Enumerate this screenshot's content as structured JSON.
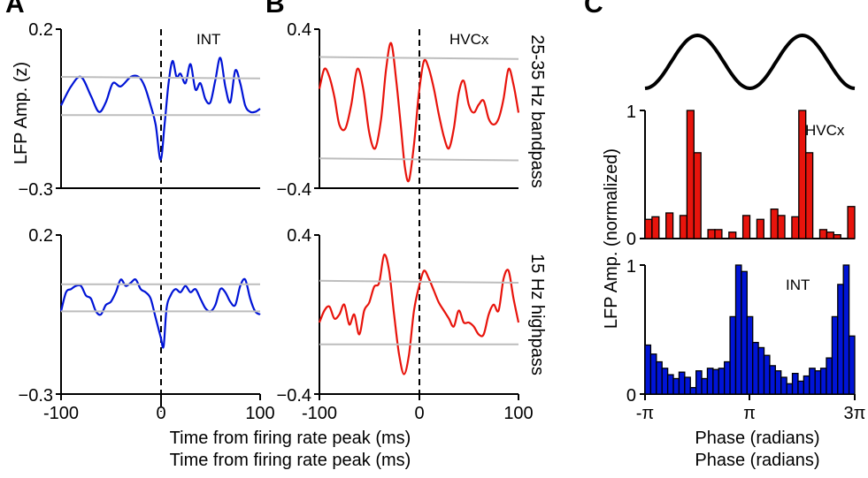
{
  "panel_letters": [
    "A",
    "B",
    "C"
  ],
  "colors": {
    "blue": "#0014d6",
    "red": "#e8140c",
    "gray": "#bdbdbd",
    "black": "#000000"
  },
  "chart_data": [
    {
      "panel": "A-top",
      "type": "line",
      "ylabel": "LFP  Amp. (z)",
      "annotation": "INT",
      "xlim": [
        -100,
        100
      ],
      "ylim": [
        -0.3,
        0.2
      ],
      "yticks": [
        "0.2",
        "−0.3"
      ],
      "xticks": [],
      "series": [
        {
          "color_key": "blue",
          "x": [
            -100,
            -90,
            -80,
            -70,
            -62,
            -55,
            -48,
            -40,
            -30,
            -22,
            -16,
            -10,
            -5,
            0,
            4,
            8,
            12,
            16,
            20,
            25,
            30,
            35,
            40,
            45,
            50,
            55,
            60,
            65,
            70,
            75,
            80,
            85,
            90,
            95,
            100
          ],
          "y": [
            -0.04,
            0.02,
            0.05,
            -0.01,
            -0.06,
            -0.03,
            0.03,
            0.02,
            0.05,
            0.05,
            0.02,
            -0.04,
            -0.1,
            -0.21,
            -0.1,
            0.03,
            0.1,
            0.05,
            0.06,
            0.03,
            0.09,
            0.01,
            0.03,
            -0.02,
            -0.03,
            0.04,
            0.11,
            0.02,
            -0.03,
            0.07,
            0.03,
            -0.04,
            -0.06,
            -0.06,
            -0.05
          ]
        },
        {
          "color_key": "gray",
          "x": [
            -100,
            100
          ],
          "y": [
            0.05,
            0.045
          ]
        },
        {
          "color_key": "gray",
          "x": [
            -100,
            100
          ],
          "y": [
            -0.07,
            -0.07
          ]
        }
      ]
    },
    {
      "panel": "B-top",
      "type": "line",
      "annotation": "HVCx",
      "side_label": "25-35 Hz bandpass",
      "xlim": [
        -100,
        100
      ],
      "ylim": [
        -0.4,
        0.4
      ],
      "yticks": [
        "0.4",
        "−0.4"
      ],
      "xticks": [],
      "series": [
        {
          "color_key": "red",
          "x": [
            -100,
            -95,
            -90,
            -85,
            -80,
            -74,
            -68,
            -62,
            -56,
            -50,
            -44,
            -38,
            -33,
            -28,
            -23,
            -18,
            -14,
            -10,
            -5,
            0,
            5,
            10,
            15,
            20,
            25,
            30,
            35,
            40,
            45,
            50,
            55,
            60,
            65,
            70,
            75,
            80,
            85,
            90,
            95,
            100
          ],
          "y": [
            0.1,
            0.2,
            0.16,
            0.06,
            -0.08,
            -0.1,
            0.02,
            0.2,
            0.1,
            -0.12,
            -0.2,
            -0.05,
            0.2,
            0.33,
            0.15,
            -0.1,
            -0.3,
            -0.36,
            -0.18,
            0.08,
            0.24,
            0.2,
            0.1,
            -0.03,
            -0.14,
            -0.2,
            -0.1,
            0.08,
            0.14,
            0.02,
            -0.02,
            0.02,
            0.04,
            -0.05,
            -0.08,
            -0.05,
            0.05,
            0.2,
            0.12,
            -0.02
          ]
        },
        {
          "color_key": "gray",
          "x": [
            -100,
            100
          ],
          "y": [
            0.26,
            0.25
          ]
        },
        {
          "color_key": "gray",
          "x": [
            -100,
            100
          ],
          "y": [
            -0.25,
            -0.26
          ]
        }
      ]
    },
    {
      "panel": "A-bottom",
      "type": "line",
      "xlabel": "Time from firing rate peak (ms)",
      "xlim": [
        -100,
        100
      ],
      "ylim": [
        -0.3,
        0.2
      ],
      "yticks": [
        "0.2",
        "−0.3"
      ],
      "xticks": [
        "-100",
        "0",
        "100"
      ],
      "series": [
        {
          "color_key": "blue",
          "x": [
            -100,
            -95,
            -90,
            -85,
            -80,
            -75,
            -70,
            -65,
            -60,
            -55,
            -50,
            -45,
            -40,
            -35,
            -30,
            -25,
            -20,
            -15,
            -10,
            -5,
            0,
            3,
            6,
            10,
            15,
            20,
            25,
            30,
            35,
            40,
            45,
            50,
            55,
            60,
            65,
            70,
            75,
            80,
            85,
            90,
            95,
            100
          ],
          "y": [
            -0.04,
            0.02,
            0.03,
            0.04,
            0.04,
            0.01,
            0.0,
            -0.04,
            -0.05,
            -0.02,
            -0.01,
            0.02,
            0.06,
            0.04,
            0.05,
            0.06,
            0.03,
            0.02,
            0.0,
            -0.06,
            -0.12,
            -0.15,
            -0.03,
            0.01,
            0.03,
            0.02,
            0.04,
            0.02,
            0.03,
            0.0,
            -0.03,
            -0.04,
            -0.02,
            0.03,
            0.02,
            -0.01,
            -0.02,
            0.04,
            0.06,
            0.0,
            -0.04,
            -0.05
          ]
        },
        {
          "color_key": "gray",
          "x": [
            -100,
            100
          ],
          "y": [
            0.045,
            0.045
          ]
        },
        {
          "color_key": "gray",
          "x": [
            -100,
            100
          ],
          "y": [
            -0.04,
            -0.04
          ]
        }
      ]
    },
    {
      "panel": "B-bottom",
      "type": "line",
      "xlabel": "Time from firing rate peak (ms)",
      "side_label": "15 Hz highpass",
      "xlim": [
        -100,
        100
      ],
      "ylim": [
        -0.4,
        0.4
      ],
      "yticks": [
        "0.4",
        "−0.4"
      ],
      "xticks": [
        "-100",
        "0",
        "100"
      ],
      "series": [
        {
          "color_key": "red",
          "x": [
            -100,
            -95,
            -90,
            -85,
            -80,
            -75,
            -70,
            -65,
            -60,
            -55,
            -50,
            -45,
            -40,
            -35,
            -30,
            -25,
            -20,
            -15,
            -10,
            -5,
            0,
            5,
            10,
            15,
            20,
            25,
            30,
            35,
            40,
            45,
            50,
            55,
            60,
            65,
            70,
            75,
            80,
            85,
            90,
            95,
            100
          ],
          "y": [
            -0.04,
            0.02,
            0.04,
            -0.02,
            0.0,
            0.05,
            -0.05,
            0.0,
            -0.1,
            0.02,
            0.06,
            0.14,
            0.16,
            0.3,
            0.22,
            0.0,
            -0.2,
            -0.3,
            -0.2,
            0.02,
            0.14,
            0.22,
            0.18,
            0.12,
            0.06,
            0.02,
            -0.02,
            -0.06,
            0.02,
            -0.04,
            -0.04,
            -0.06,
            -0.1,
            -0.1,
            0.0,
            0.05,
            0.02,
            0.18,
            0.22,
            0.08,
            -0.04
          ]
        },
        {
          "color_key": "gray",
          "x": [
            -100,
            100
          ],
          "y": [
            0.17,
            0.16
          ]
        },
        {
          "color_key": "gray",
          "x": [
            -100,
            100
          ],
          "y": [
            -0.15,
            -0.15
          ]
        }
      ]
    },
    {
      "panel": "C-sine",
      "type": "line",
      "xlim": [
        -3.14159,
        9.42478
      ],
      "series": [
        {
          "color_key": "black",
          "function": "cos-phase"
        }
      ]
    },
    {
      "panel": "C-top",
      "type": "bar",
      "annotation": "HVCx",
      "ylabel": "LFP  Amp. (normalized)",
      "xlim": [
        -3.14159,
        9.42478
      ],
      "ylim": [
        0,
        1
      ],
      "yticks": [
        "1",
        "0"
      ],
      "xticks": [],
      "values": [
        0.15,
        0.17,
        0.0,
        0.2,
        0.0,
        0.18,
        1.0,
        0.67,
        0.0,
        0.07,
        0.07,
        0.0,
        0.05,
        0.0,
        0.18,
        0.0,
        0.15,
        0.0,
        0.23,
        0.18,
        0.0,
        0.17,
        1.0,
        0.67,
        0.0,
        0.07,
        0.05,
        0.03,
        0.0,
        0.25
      ]
    },
    {
      "panel": "C-bottom",
      "type": "bar",
      "annotation": "INT",
      "xlabel": "Phase (radians)",
      "xlim": [
        -3.14159,
        9.42478
      ],
      "ylim": [
        0,
        1
      ],
      "yticks": [
        "1",
        "0"
      ],
      "xticks": [
        "-π",
        "π",
        "3π"
      ],
      "values": [
        0.38,
        0.31,
        0.25,
        0.2,
        0.15,
        0.12,
        0.17,
        0.13,
        0.05,
        0.18,
        0.12,
        0.2,
        0.19,
        0.2,
        0.25,
        0.6,
        1.0,
        0.95,
        0.6,
        0.4,
        0.36,
        0.3,
        0.22,
        0.18,
        0.13,
        0.08,
        0.16,
        0.1,
        0.14,
        0.2,
        0.18,
        0.2,
        0.28,
        0.6,
        0.85,
        1.0,
        0.45
      ]
    }
  ]
}
